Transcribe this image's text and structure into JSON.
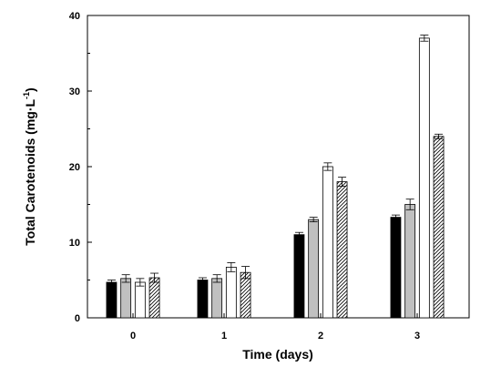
{
  "chart_data": {
    "type": "bar",
    "xlabel": "Time (days)",
    "ylabel": {
      "main": "Total Carotenoids (mg·L",
      "superscript": "-1",
      "close": ")"
    },
    "categories": [
      "0",
      "1",
      "2",
      "3"
    ],
    "ylim": [
      0,
      40
    ],
    "yticks": [
      "0",
      "10",
      "20",
      "30",
      "40"
    ],
    "grid": false,
    "legend": "none",
    "series": [
      {
        "fill": "#000000",
        "pattern": "solid",
        "values": [
          4.7,
          5.0,
          11.0,
          13.3
        ],
        "errors": [
          0.3,
          0.3,
          0.3,
          0.3
        ]
      },
      {
        "fill": "#c0c0c0",
        "pattern": "solid",
        "values": [
          5.2,
          5.2,
          13.0,
          15.0
        ],
        "errors": [
          0.5,
          0.5,
          0.3,
          0.7
        ]
      },
      {
        "fill": "#ffffff",
        "pattern": "solid",
        "values": [
          4.7,
          6.7,
          20.0,
          37.0
        ],
        "errors": [
          0.5,
          0.6,
          0.5,
          0.4
        ]
      },
      {
        "fill": "#ffffff",
        "pattern": "diagonal-hatch",
        "values": [
          5.3,
          6.0,
          18.0,
          24.0
        ],
        "errors": [
          0.6,
          0.8,
          0.6,
          0.3
        ]
      }
    ]
  }
}
